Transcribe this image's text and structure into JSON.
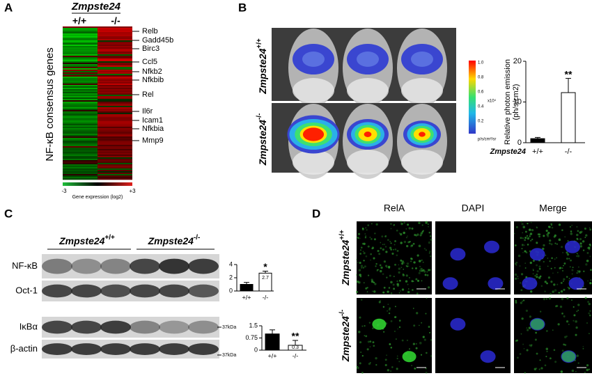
{
  "panels": {
    "A": {
      "label": "A",
      "genotype": "Zmpste24",
      "columns": [
        "+/+",
        "-/-"
      ],
      "y_label": "NF-κB consensus genes",
      "genes": [
        "Relb",
        "Gadd45b",
        "Birc3",
        "Ccl5",
        "Nfkb2",
        "Nfkbib",
        "Rel",
        "Il6r",
        "Icam1",
        "Nfkbia",
        "Mmp9"
      ],
      "colorbar": {
        "min": "-3",
        "max": "+3",
        "label": "Gene expression (log2)"
      }
    },
    "B": {
      "label": "B",
      "rows": [
        {
          "genotype": "Zmpste24",
          "sup": "+/+"
        },
        {
          "genotype": "Zmpste24",
          "sup": "-/-"
        }
      ],
      "colorbar": {
        "ticks": [
          "1.0",
          "0.8",
          "0.6",
          "0.4",
          "0.2"
        ],
        "scale": "x10⁴",
        "unit": "p/s/cm²/sr"
      }
    },
    "C": {
      "label": "C",
      "groups": [
        {
          "genotype": "Zmpste24",
          "sup": "+/+"
        },
        {
          "genotype": "Zmpste24",
          "sup": "-/-"
        }
      ],
      "blots": [
        "NF-κB",
        "Oct-1",
        "IκBα",
        "β-actin"
      ],
      "markers": [
        "37kDa",
        "37kDa"
      ]
    },
    "D": {
      "label": "D",
      "columns": [
        "RelA",
        "DAPI",
        "Merge"
      ],
      "rows": [
        {
          "genotype": "Zmpste24",
          "sup": "+/+"
        },
        {
          "genotype": "Zmpste24",
          "sup": "-/-"
        }
      ]
    }
  },
  "chart_data": [
    {
      "type": "bar",
      "y_label": [
        "Relative photon emission",
        "(ph/s/cm2)"
      ],
      "x_label": "Zmpste24",
      "categories": [
        "+/+",
        "-/-"
      ],
      "values": [
        1.0,
        12.3
      ],
      "errors": [
        0.3,
        3.5
      ],
      "colors": [
        "#000000",
        "#ffffff"
      ],
      "ylim": [
        0,
        20
      ],
      "yticks": [
        0,
        10,
        20
      ],
      "significance": [
        null,
        "**"
      ]
    },
    {
      "type": "bar",
      "categories": [
        "+/+",
        "-/-"
      ],
      "values": [
        1.0,
        2.7
      ],
      "errors": [
        0.3,
        0.3
      ],
      "value_labels": [
        null,
        "2.7"
      ],
      "colors": [
        "#000000",
        "#ffffff"
      ],
      "ylim": [
        0,
        4
      ],
      "yticks": [
        0,
        2,
        4
      ],
      "significance": [
        null,
        "*"
      ]
    },
    {
      "type": "bar",
      "categories": [
        "+/+",
        "-/-"
      ],
      "values": [
        1.0,
        0.3
      ],
      "errors": [
        0.25,
        0.3
      ],
      "value_labels": [
        null,
        "0.3"
      ],
      "colors": [
        "#000000",
        "#ffffff"
      ],
      "ylim": [
        0,
        1.5
      ],
      "yticks": [
        0,
        0.75,
        1.5
      ],
      "significance": [
        null,
        "**"
      ]
    }
  ]
}
